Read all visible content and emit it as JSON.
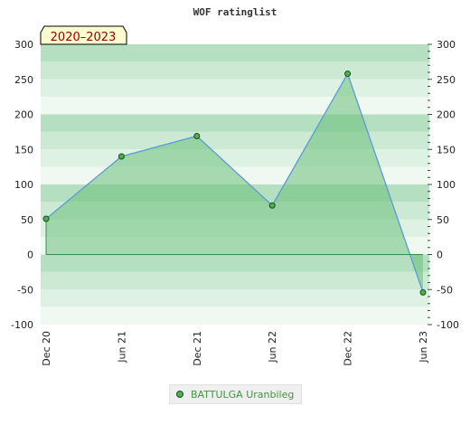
{
  "chart_data": {
    "type": "area",
    "title": "WOF ratinglist",
    "badge": "2020–2023",
    "x": [
      "Dec 20",
      "Jun 21",
      "Dec 21",
      "Jun 22",
      "Dec 22",
      "Jun 23"
    ],
    "series": [
      {
        "name": "BATTULGA Uranbileg",
        "values": [
          51,
          140,
          169,
          70,
          258,
          -54
        ]
      }
    ],
    "ylim": [
      -100,
      300
    ],
    "yticks": [
      300,
      250,
      200,
      150,
      100,
      50,
      0,
      -50,
      -100
    ],
    "grid": true,
    "legend_position": "bottom-center",
    "colors": {
      "line": "#5b9bd5",
      "fill": "#6cc07a",
      "marker": "#4caf50",
      "marker_edge": "#1b4d1b",
      "legend_text": "#3c9a3c"
    }
  }
}
